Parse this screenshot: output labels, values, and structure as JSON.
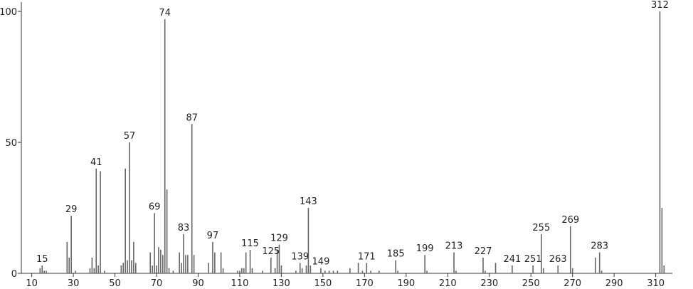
{
  "chart_data": {
    "type": "stick",
    "x": [
      14,
      15,
      16,
      17,
      27,
      28,
      29,
      31,
      38,
      39,
      40,
      41,
      42,
      43,
      45,
      53,
      54,
      55,
      56,
      57,
      58,
      59,
      60,
      67,
      68,
      69,
      70,
      71,
      72,
      73,
      74,
      75,
      76,
      78,
      81,
      82,
      83,
      84,
      85,
      87,
      88,
      95,
      97,
      98,
      101,
      102,
      109,
      110,
      111,
      112,
      113,
      115,
      116,
      121,
      125,
      127,
      128,
      129,
      130,
      137,
      139,
      140,
      142,
      143,
      144,
      149,
      151,
      153,
      155,
      157,
      163,
      167,
      169,
      171,
      173,
      177,
      185,
      186,
      199,
      200,
      213,
      214,
      227,
      228,
      233,
      241,
      251,
      255,
      256,
      263,
      269,
      270,
      281,
      283,
      284,
      312,
      313,
      314
    ],
    "values": [
      2,
      3,
      1,
      1,
      12,
      6,
      22,
      1,
      2,
      6,
      2,
      40,
      3,
      39,
      1,
      3,
      4,
      40,
      5,
      50,
      5,
      12,
      4,
      8,
      3,
      23,
      3,
      10,
      9,
      7,
      97,
      32,
      2,
      1,
      8,
      4,
      15,
      7,
      7,
      57,
      7,
      4,
      12,
      8,
      8,
      2,
      1,
      1,
      2,
      2,
      8,
      9,
      2,
      1,
      6,
      2,
      9,
      11,
      3,
      1,
      4,
      2,
      3,
      25,
      3,
      2,
      1,
      1,
      1,
      1,
      2,
      4,
      1,
      4,
      1,
      1,
      5,
      1,
      7,
      1,
      8,
      1,
      6,
      1,
      4,
      3,
      3,
      15,
      2,
      3,
      18,
      2,
      6,
      8,
      1,
      100,
      25,
      3
    ],
    "peak_labels": [
      15,
      29,
      41,
      57,
      69,
      74,
      83,
      87,
      97,
      115,
      125,
      129,
      139,
      143,
      149,
      171,
      185,
      199,
      213,
      227,
      241,
      251,
      255,
      263,
      269,
      283,
      312
    ],
    "color": "#666666",
    "xlim": [
      5,
      318
    ],
    "xticks": [
      10,
      30,
      50,
      70,
      90,
      110,
      130,
      150,
      170,
      190,
      210,
      230,
      250,
      270,
      290,
      310
    ],
    "ylim": [
      0,
      103
    ],
    "yticks": [
      0,
      50,
      100
    ]
  }
}
